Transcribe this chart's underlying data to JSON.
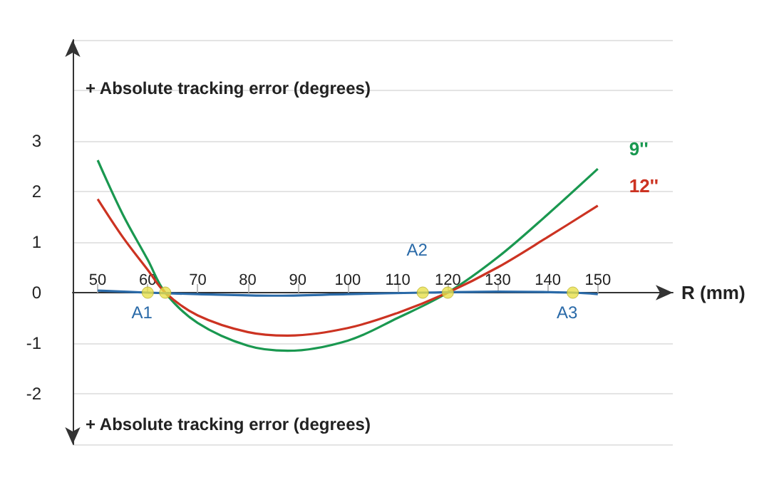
{
  "chart_data": {
    "type": "line",
    "ylabel": "+ Absolute tracking error (degrees)",
    "xlabel": "R (mm)",
    "xlim": [
      45,
      165
    ],
    "xticks": [
      50,
      60,
      70,
      80,
      90,
      100,
      110,
      120,
      130,
      140,
      150
    ],
    "ylim": [
      -3,
      5
    ],
    "yticks": [
      -2,
      -1,
      0,
      1,
      2,
      3
    ],
    "grid": "y",
    "marker": "none",
    "line_style": "solid",
    "series": [
      {
        "name": "9''",
        "color": "#1a9850",
        "x": [
          50,
          55,
          60,
          63.5,
          70,
          80,
          88,
          100,
          110,
          120,
          130,
          140,
          150
        ],
        "values": [
          2.62,
          1.55,
          0.65,
          0,
          -0.6,
          -1.05,
          -1.15,
          -0.95,
          -0.5,
          0,
          0.7,
          1.55,
          2.45
        ]
      },
      {
        "name": "12''",
        "color": "#cc3322",
        "x": [
          50,
          55,
          60,
          63.5,
          70,
          80,
          88,
          100,
          110,
          120,
          130,
          140,
          150
        ],
        "values": [
          1.85,
          1.1,
          0.45,
          0,
          -0.45,
          -0.78,
          -0.85,
          -0.7,
          -0.4,
          0,
          0.5,
          1.1,
          1.72
        ]
      },
      {
        "color": "#2a6aa8",
        "x": [
          50,
          60,
          70,
          85,
          100,
          115,
          130,
          145,
          150
        ],
        "values": [
          0.04,
          0,
          -0.03,
          -0.06,
          -0.03,
          0,
          0.02,
          0,
          -0.03
        ]
      },
      {
        "type": "scatter",
        "marker": "circle",
        "color": "#e8e04a",
        "x": [
          60,
          63.5,
          115,
          120,
          145
        ],
        "values": [
          0,
          0,
          0,
          0,
          0
        ]
      }
    ],
    "annotations": [
      {
        "text": "A1",
        "x": 60,
        "y": 0
      },
      {
        "text": "A2",
        "x": 115,
        "y": 0
      },
      {
        "text": "A3",
        "x": 145,
        "y": 0
      },
      "+ Absolute tracking error (degrees)"
    ]
  }
}
